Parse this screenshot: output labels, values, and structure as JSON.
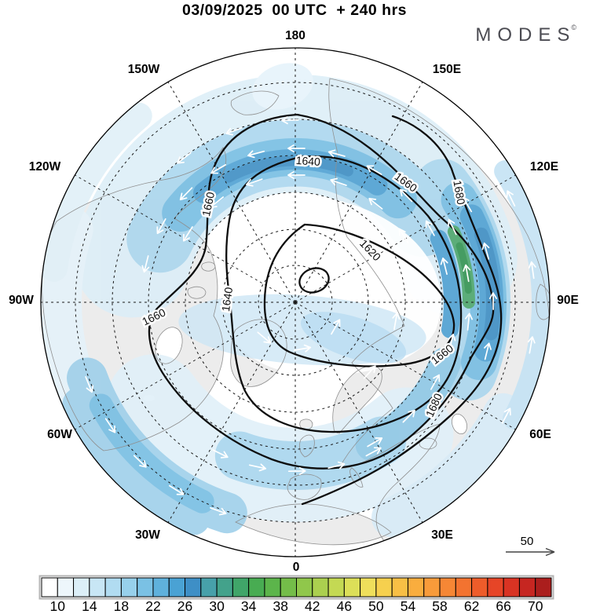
{
  "header": {
    "title": "03/09/2025  00 UTC  + 240 hrs"
  },
  "logo": {
    "text": "MODES",
    "mark": "©"
  },
  "map": {
    "ring_labels": [
      "180",
      "150W",
      "150E",
      "120W",
      "120E",
      "90W",
      "90E",
      "60W",
      "60E",
      "30W",
      "30E",
      "0"
    ],
    "contour_labels": [
      "1640",
      "1660",
      "1680",
      "1620",
      "1660",
      "1640",
      "1660",
      "1660",
      "1680"
    ]
  },
  "wind_reference": {
    "value": "50"
  },
  "colorbar": {
    "tick_labels": [
      "10",
      "14",
      "18",
      "22",
      "26",
      "30",
      "34",
      "38",
      "42",
      "46",
      "50",
      "54",
      "58",
      "62",
      "66",
      "70"
    ],
    "cell_colors": [
      "#ffffff",
      "#edf6fb",
      "#dceff8",
      "#c8e6f5",
      "#b1dcf1",
      "#97d0eb",
      "#7ac1e4",
      "#5fb1dc",
      "#4aa2d4",
      "#3e8fc6",
      "#47a0aa",
      "#43a28b",
      "#40a569",
      "#48ac52",
      "#5cb54b",
      "#74bd49",
      "#90c74b",
      "#abd04f",
      "#c4d953",
      "#dcdf58",
      "#efdf5b",
      "#f6d04e",
      "#f8bf45",
      "#f9ad3e",
      "#f89b3a",
      "#f68735",
      "#f37330",
      "#ee5c2a",
      "#e64527",
      "#d93323",
      "#c62621",
      "#ab1e1d"
    ]
  },
  "chart_data": {
    "type": "heatmap",
    "title": "03/09/2025 00 UTC + 240 hrs",
    "projection": "north-polar-stereographic",
    "longitude_ring_labels": [
      "180",
      "150W",
      "150E",
      "120W",
      "120E",
      "90W",
      "90E",
      "60W",
      "60E",
      "30W",
      "30E",
      "0"
    ],
    "contour_levels": [
      1620,
      1640,
      1660,
      1680
    ],
    "shading_scale": {
      "min": 8,
      "max": 72,
      "step": 2,
      "tick_values": [
        10,
        14,
        18,
        22,
        26,
        30,
        34,
        38,
        42,
        46,
        50,
        54,
        58,
        62,
        66,
        70
      ]
    },
    "wind_reference_arrow_value": 50
  }
}
